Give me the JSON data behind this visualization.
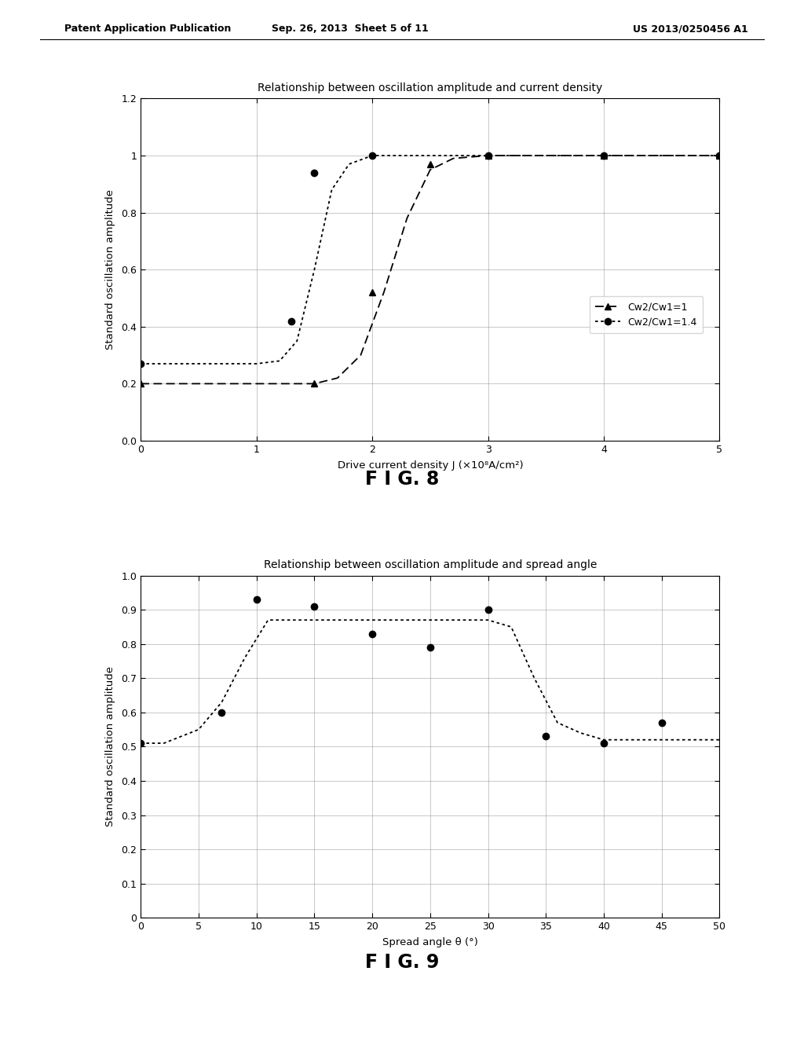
{
  "fig8": {
    "title": "Relationship between oscillation amplitude and current density",
    "xlabel": "Drive current density J (×10⁸A∕cm²)",
    "ylabel": "Standard oscillation amplitude",
    "xlim": [
      0,
      5
    ],
    "ylim": [
      0.0,
      1.2
    ],
    "xticks": [
      0,
      1,
      2,
      3,
      4,
      5
    ],
    "yticks": [
      0.0,
      0.2,
      0.4,
      0.6,
      0.8,
      1.0,
      1.2
    ],
    "series1_label": "Cw2∕Cw1=1",
    "series2_label": "Cw2∕Cw1=1.4",
    "series1_x": [
      0,
      1.5,
      2.0,
      2.5,
      3.0,
      4.0,
      5.0
    ],
    "series1_y": [
      0.2,
      0.2,
      0.52,
      0.97,
      1.0,
      1.0,
      1.0
    ],
    "series2_x": [
      0,
      1.3,
      1.5,
      2.0,
      3.0,
      4.0,
      5.0
    ],
    "series2_y": [
      0.27,
      0.42,
      0.94,
      1.0,
      1.0,
      1.0,
      1.0
    ],
    "curve1_x": [
      0,
      0.5,
      1.0,
      1.5,
      1.7,
      1.9,
      2.1,
      2.3,
      2.5,
      2.7,
      3.0,
      3.5,
      4.0,
      4.5,
      5.0
    ],
    "curve1_y": [
      0.2,
      0.2,
      0.2,
      0.2,
      0.22,
      0.3,
      0.52,
      0.78,
      0.95,
      0.99,
      1.0,
      1.0,
      1.0,
      1.0,
      1.0
    ],
    "curve2_x": [
      0,
      0.5,
      1.0,
      1.2,
      1.35,
      1.5,
      1.65,
      1.8,
      2.0,
      2.5,
      3.0,
      3.5,
      4.0,
      4.5,
      5.0
    ],
    "curve2_y": [
      0.27,
      0.27,
      0.27,
      0.28,
      0.35,
      0.6,
      0.88,
      0.97,
      1.0,
      1.0,
      1.0,
      1.0,
      1.0,
      1.0,
      1.0
    ]
  },
  "fig9": {
    "title": "Relationship between oscillation amplitude and spread angle",
    "xlabel": "Spread angle θ (°)",
    "ylabel": "Standard oscillation amplitude",
    "xlim": [
      0,
      50
    ],
    "ylim": [
      0,
      1.0
    ],
    "xticks": [
      0,
      5,
      10,
      15,
      20,
      25,
      30,
      35,
      40,
      45,
      50
    ],
    "yticks": [
      0,
      0.1,
      0.2,
      0.3,
      0.4,
      0.5,
      0.6,
      0.7,
      0.8,
      0.9,
      1.0
    ],
    "data_x": [
      0,
      7,
      10,
      15,
      20,
      25,
      30,
      35,
      40,
      45
    ],
    "data_y": [
      0.51,
      0.6,
      0.93,
      0.91,
      0.83,
      0.79,
      0.9,
      0.53,
      0.51,
      0.57
    ],
    "curve_x": [
      0,
      2,
      5,
      7,
      9,
      11,
      13,
      15,
      17,
      20,
      22,
      25,
      27,
      30,
      32,
      34,
      36,
      38,
      40,
      42,
      45,
      48,
      50
    ],
    "curve_y": [
      0.51,
      0.51,
      0.55,
      0.63,
      0.76,
      0.87,
      0.87,
      0.87,
      0.87,
      0.87,
      0.87,
      0.87,
      0.87,
      0.87,
      0.85,
      0.7,
      0.57,
      0.54,
      0.52,
      0.52,
      0.52,
      0.52,
      0.52
    ]
  },
  "header_left": "Patent Application Publication",
  "header_mid": "Sep. 26, 2013  Sheet 5 of 11",
  "header_right": "US 2013/0250456 A1",
  "fig8_label": "F I G. 8",
  "fig9_label": "F I G. 9",
  "background_color": "#ffffff",
  "line_color": "#000000"
}
